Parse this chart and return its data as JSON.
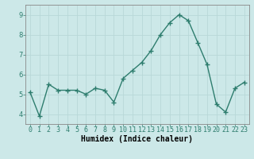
{
  "x": [
    0,
    1,
    2,
    3,
    4,
    5,
    6,
    7,
    8,
    9,
    10,
    11,
    12,
    13,
    14,
    15,
    16,
    17,
    18,
    19,
    20,
    21,
    22,
    23
  ],
  "y": [
    5.1,
    3.9,
    5.5,
    5.2,
    5.2,
    5.2,
    5.0,
    5.3,
    5.2,
    4.6,
    5.8,
    6.2,
    6.6,
    7.2,
    8.0,
    8.6,
    9.0,
    8.7,
    7.6,
    6.5,
    4.5,
    4.1,
    5.3,
    5.6
  ],
  "line_color": "#2e7d6e",
  "bg_color": "#cce8e8",
  "grid_color": "#b8d8d8",
  "xlabel": "Humidex (Indice chaleur)",
  "yticks": [
    4,
    5,
    6,
    7,
    8,
    9
  ],
  "ylim": [
    3.5,
    9.5
  ],
  "xlim": [
    -0.5,
    23.5
  ],
  "xticks": [
    0,
    1,
    2,
    3,
    4,
    5,
    6,
    7,
    8,
    9,
    10,
    11,
    12,
    13,
    14,
    15,
    16,
    17,
    18,
    19,
    20,
    21,
    22,
    23
  ],
  "marker": "+",
  "linewidth": 1.0,
  "markersize": 4,
  "markeredgewidth": 1.0,
  "tick_fontsize": 6.0,
  "xlabel_fontsize": 7.0
}
